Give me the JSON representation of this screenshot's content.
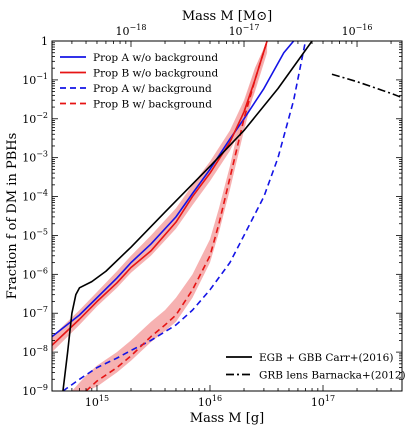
{
  "chart_data": {
    "type": "line",
    "xscale": "log",
    "yscale": "log",
    "xlabel": "Mass M [g]",
    "ylabel": "Fraction f of DM in PBHs",
    "top_xlabel": "Mass M [M⊙]",
    "xlim": [
      400000000000000.0,
      5e+17
    ],
    "ylim": [
      1e-09,
      1
    ],
    "top_xlim": [
      2e-19,
      2.5e-16
    ],
    "x_ticks": [
      {
        "value": 1000000000000000.0,
        "label": "10^15"
      },
      {
        "value": 1e+16,
        "label": "10^16"
      },
      {
        "value": 1e+17,
        "label": "10^17"
      }
    ],
    "top_x_ticks": [
      {
        "value": 1e-18,
        "label": "10^−18"
      },
      {
        "value": 1e-17,
        "label": "10^−17"
      },
      {
        "value": 1e-16,
        "label": "10^−16"
      }
    ],
    "y_ticks": [
      {
        "value": 1,
        "label": "1"
      },
      {
        "value": 0.1,
        "label": "10^−1"
      },
      {
        "value": 0.01,
        "label": "10^−2"
      },
      {
        "value": 0.001,
        "label": "10^−3"
      },
      {
        "value": 0.0001,
        "label": "10^−4"
      },
      {
        "value": 1e-05,
        "label": "10^−5"
      },
      {
        "value": 1e-06,
        "label": "10^−6"
      },
      {
        "value": 1e-07,
        "label": "10^−7"
      },
      {
        "value": 1e-08,
        "label": "10^−8"
      },
      {
        "value": 1e-09,
        "label": "10^−9"
      }
    ],
    "series": [
      {
        "name": "Prop A w/o background",
        "color": "#1414e6",
        "style": "solid",
        "x": [
          400000000000000.0,
          700000000000000.0,
          1000000000000000.0,
          1500000000000000.0,
          2000000000000000.0,
          3000000000000000.0,
          5000000000000000.0,
          7000000000000000.0,
          1e+16,
          1.5e+16,
          2e+16,
          3e+16,
          4.5e+16,
          5.5e+16
        ],
        "y": [
          2.5e-08,
          9e-08,
          2.5e-07,
          8e-07,
          2e-06,
          6e-06,
          3e-05,
          0.00012,
          0.0005,
          0.003,
          0.01,
          0.06,
          0.5,
          1
        ]
      },
      {
        "name": "Prop B w/o background",
        "color": "#e61414",
        "style": "solid",
        "x": [
          400000000000000.0,
          700000000000000.0,
          1000000000000000.0,
          1500000000000000.0,
          2000000000000000.0,
          3000000000000000.0,
          5000000000000000.0,
          7000000000000000.0,
          1e+16,
          1.5e+16,
          2e+16,
          2.5e+16,
          3.2e+16
        ],
        "y": [
          1.5e-08,
          7e-08,
          2e-07,
          6e-07,
          1.5e-06,
          4e-06,
          2.2e-05,
          0.0001,
          0.0004,
          0.0025,
          0.015,
          0.1,
          1
        ]
      },
      {
        "name": "Prop A w/ background",
        "color": "#1414e6",
        "style": "dashed",
        "x": [
          500000000000000.0,
          700000000000000.0,
          1000000000000000.0,
          1500000000000000.0,
          2000000000000000.0,
          3000000000000000.0,
          5000000000000000.0,
          7000000000000000.0,
          1e+16,
          1.5e+16,
          2e+16,
          3e+16,
          4e+16,
          5.5e+16,
          7e+16
        ],
        "y": [
          1e-09,
          2e-09,
          4e-09,
          7e-09,
          1.1e-08,
          2e-08,
          5e-08,
          1.2e-07,
          4e-07,
          2e-06,
          1e-05,
          0.0001,
          0.001,
          0.03,
          1
        ]
      },
      {
        "name": "Prop B w/ background",
        "color": "#e61414",
        "style": "dashed",
        "x": [
          800000000000000.0,
          1000000000000000.0,
          1500000000000000.0,
          2000000000000000.0,
          3000000000000000.0,
          4000000000000000.0,
          5000000000000000.0,
          7000000000000000.0,
          1e+16,
          1.2e+16,
          1.5e+16,
          2e+16,
          2.5e+16,
          3.2e+16
        ],
        "y": [
          1e-09,
          1.8e-09,
          4e-09,
          8e-09,
          2.5e-08,
          5e-08,
          9e-08,
          4e-07,
          3e-06,
          2e-05,
          0.0003,
          0.01,
          0.1,
          1
        ]
      },
      {
        "name": "EGB + GBB Carr+(2016)",
        "color": "#000000",
        "style": "solid",
        "x": [
          500000000000000.0,
          550000000000000.0,
          600000000000000.0,
          650000000000000.0,
          700000000000000.0,
          900000000000000.0,
          1200000000000000.0,
          2000000000000000.0,
          4000000000000000.0,
          1e+16,
          2e+16,
          4e+16,
          8e+16
        ],
        "y": [
          1e-09,
          1e-08,
          1e-07,
          3e-07,
          4.5e-07,
          6.5e-07,
          1.2e-06,
          5e-06,
          4e-05,
          0.0006,
          0.005,
          0.06,
          1
        ]
      },
      {
        "name": "GRB lens Barnacka+(2012)",
        "color": "#000000",
        "style": "dashdot",
        "x": [
          1.2e+17,
          2e+17,
          3e+17,
          4e+17,
          5e+17
        ],
        "y": [
          0.14,
          0.09,
          0.06,
          0.045,
          0.035
        ]
      }
    ],
    "bands": [
      {
        "color": "#f4a3a3",
        "x": [
          400000000000000.0,
          700000000000000.0,
          1000000000000000.0,
          1500000000000000.0,
          2000000000000000.0,
          3000000000000000.0,
          5000000000000000.0,
          7000000000000000.0,
          1e+16,
          1.5e+16,
          2e+16,
          2.5e+16,
          3.2e+16
        ],
        "lower": [
          1e-08,
          5e-08,
          1.5e-07,
          4.5e-07,
          1.1e-06,
          3e-06,
          1.5e-05,
          6e-05,
          0.00025,
          0.0015,
          0.008,
          0.05,
          0.5
        ],
        "upper": [
          2.5e-08,
          1.2e-07,
          3.5e-07,
          1.2e-06,
          3e-06,
          1e-05,
          5e-05,
          0.0002,
          0.0008,
          0.005,
          0.03,
          0.2,
          1
        ]
      },
      {
        "color": "#f4a3a3",
        "x": [
          600000000000000.0,
          800000000000000.0,
          1000000000000000.0,
          1500000000000000.0,
          2000000000000000.0,
          3000000000000000.0,
          4000000000000000.0,
          5000000000000000.0,
          7000000000000000.0,
          1e+16,
          1.2e+16,
          1.5e+16,
          2e+16,
          2.5e+16,
          3.2e+16
        ],
        "lower": [
          1e-09,
          1e-09,
          1.3e-09,
          3e-09,
          6e-09,
          1.8e-08,
          3.5e-08,
          6e-08,
          2.5e-07,
          2e-06,
          1.2e-05,
          0.00015,
          0.005,
          0.06,
          0.7
        ],
        "upper": [
          1e-09,
          2.5e-09,
          4.5e-09,
          1e-08,
          2e-08,
          6e-08,
          1.2e-07,
          2.5e-07,
          1e-06,
          8e-06,
          5e-05,
          0.0006,
          0.025,
          0.2,
          1
        ]
      }
    ],
    "legend_upper": {
      "placement": "upper-left",
      "entries": [
        0,
        1,
        2,
        3
      ]
    },
    "legend_lower": {
      "placement": "lower-right",
      "entries": [
        4,
        5
      ]
    },
    "grid": false
  }
}
